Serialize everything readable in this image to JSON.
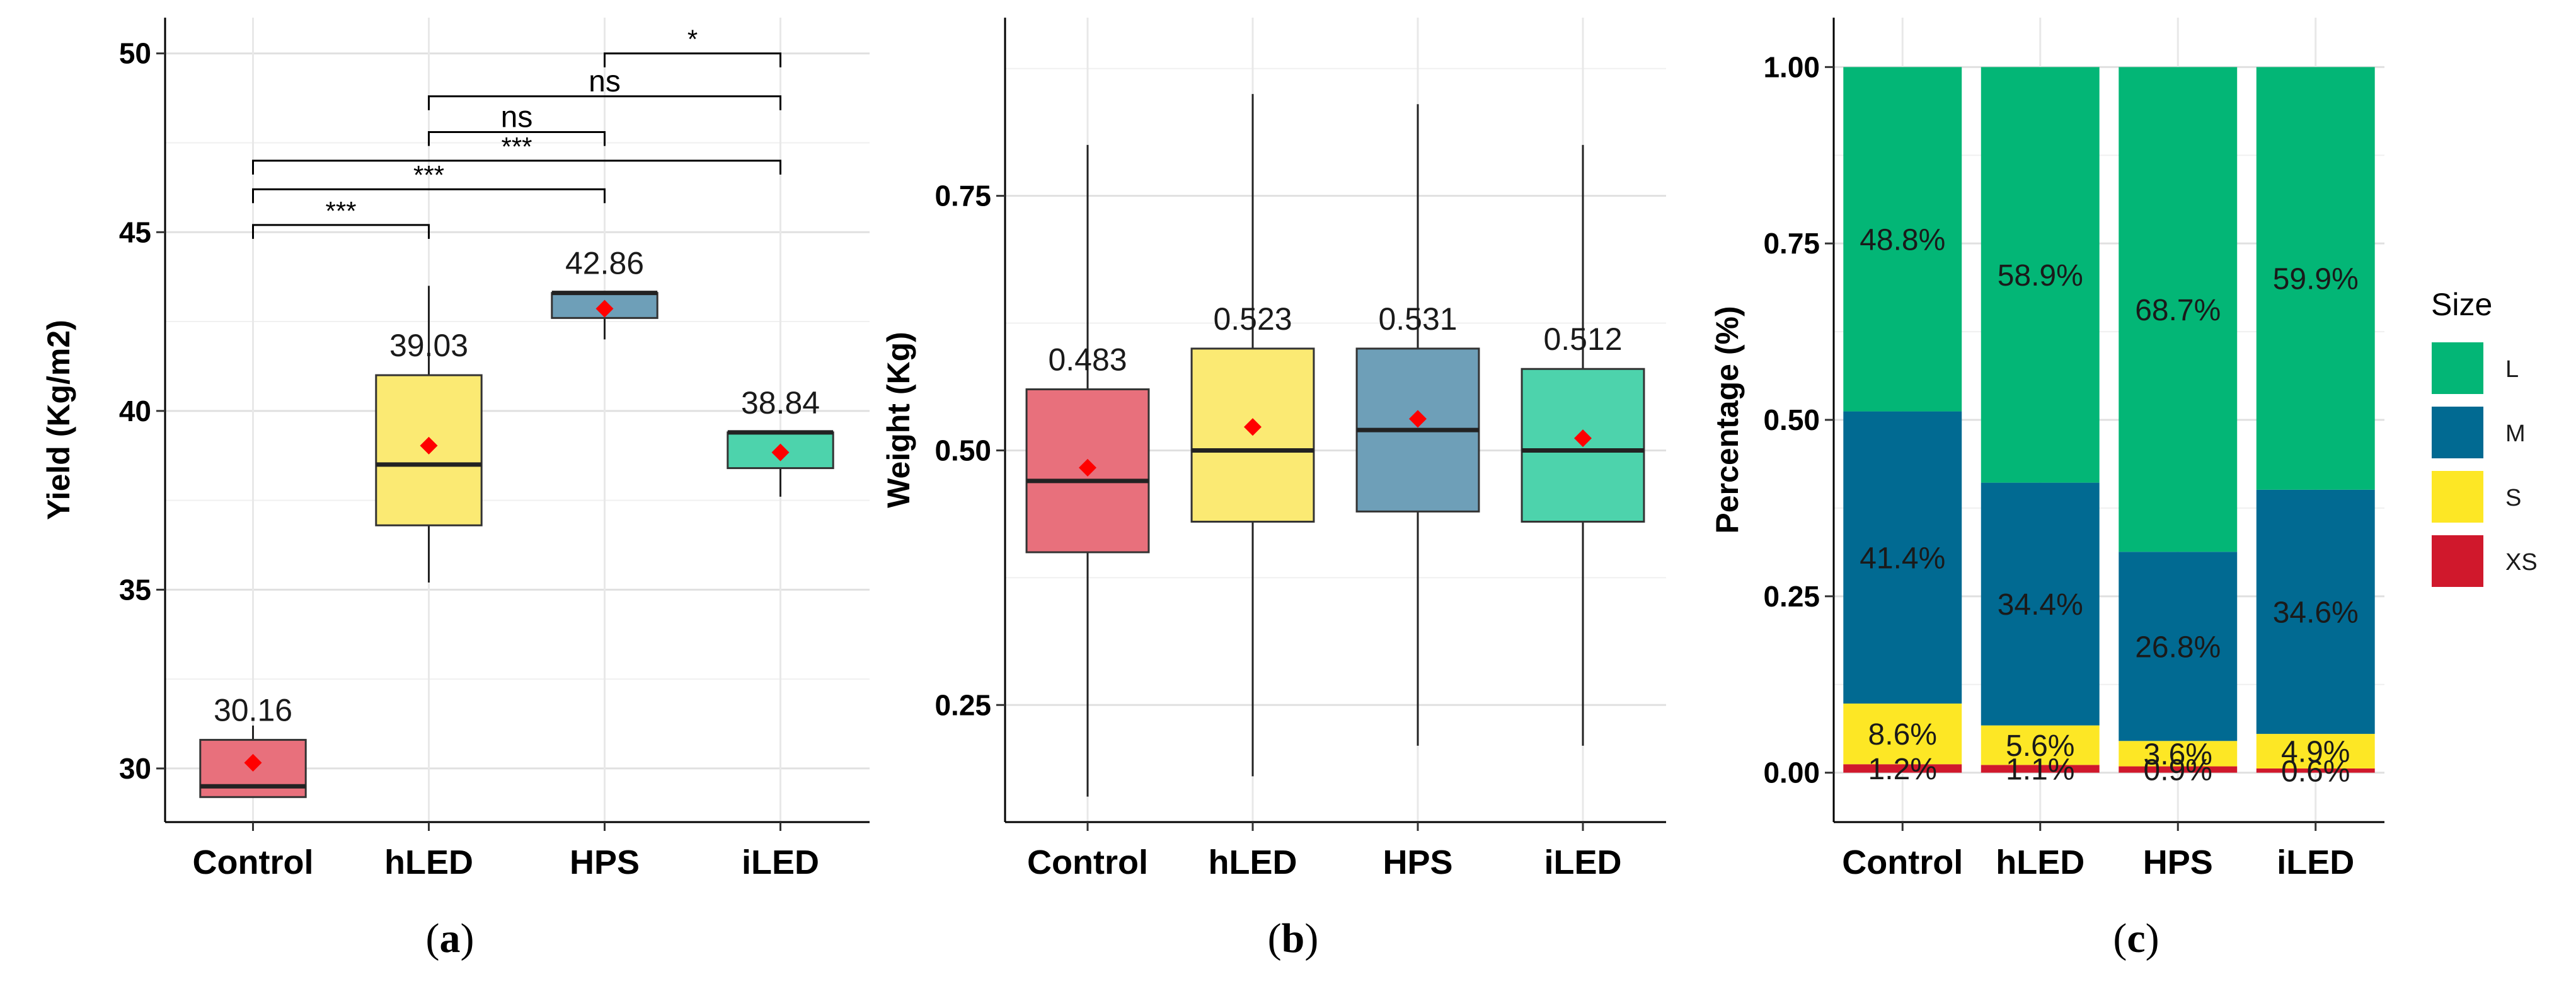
{
  "chart_data": [
    {
      "type": "box",
      "panel": "(a)",
      "panel_letter": "a",
      "ylabel": "Yield (Kg/m2)",
      "xlabel": "",
      "categories": [
        "Control",
        "hLED",
        "HPS",
        "iLED"
      ],
      "ylim": [
        28.5,
        51
      ],
      "yticks": [
        30,
        35,
        40,
        45,
        50
      ],
      "colors": [
        "#e8707c",
        "#fbea73",
        "#6e9fb8",
        "#4dd3ac"
      ],
      "boxes": [
        {
          "whisker_low": 29.2,
          "q1": 29.2,
          "median": 29.5,
          "q3": 30.8,
          "whisker_high": 31.2,
          "mean": 30.16,
          "mean_label": "30.16"
        },
        {
          "whisker_low": 35.2,
          "q1": 36.8,
          "median": 38.5,
          "q3": 41.0,
          "whisker_high": 43.5,
          "mean": 39.03,
          "mean_label": "39.03"
        },
        {
          "whisker_low": 42.0,
          "q1": 42.6,
          "median": 43.3,
          "q3": 43.3,
          "whisker_high": 43.3,
          "mean": 42.86,
          "mean_label": "42.86"
        },
        {
          "whisker_low": 37.6,
          "q1": 38.4,
          "median": 39.4,
          "q3": 39.4,
          "whisker_high": 39.4,
          "mean": 38.84,
          "mean_label": "38.84"
        }
      ],
      "significance": [
        {
          "from": "HPS",
          "to": "iLED",
          "label": "*",
          "y": 50.0
        },
        {
          "from": "hLED",
          "to": "iLED",
          "label": "ns",
          "y": 48.8
        },
        {
          "from": "hLED",
          "to": "HPS",
          "label": "ns",
          "y": 47.8
        },
        {
          "from": "Control",
          "to": "iLED",
          "label": "***",
          "y": 47.0
        },
        {
          "from": "Control",
          "to": "HPS",
          "label": "***",
          "y": 46.2
        },
        {
          "from": "Control",
          "to": "hLED",
          "label": "***",
          "y": 45.2
        }
      ]
    },
    {
      "type": "box",
      "panel": "(b)",
      "panel_letter": "b",
      "ylabel": "Weight (Kg)",
      "xlabel": "",
      "categories": [
        "Control",
        "hLED",
        "HPS",
        "iLED"
      ],
      "ylim": [
        0.135,
        0.925
      ],
      "yticks": [
        0.25,
        0.5,
        0.75
      ],
      "ytick_labels": [
        "0.25",
        "0.50",
        "0.75"
      ],
      "colors": [
        "#e8707c",
        "#fbea73",
        "#6e9fb8",
        "#4dd3ac"
      ],
      "boxes": [
        {
          "whisker_low": 0.16,
          "q1": 0.4,
          "median": 0.47,
          "q3": 0.56,
          "whisker_high": 0.8,
          "mean": 0.483,
          "mean_label": "0.483"
        },
        {
          "whisker_low": 0.18,
          "q1": 0.43,
          "median": 0.5,
          "q3": 0.6,
          "whisker_high": 0.85,
          "mean": 0.523,
          "mean_label": "0.523"
        },
        {
          "whisker_low": 0.21,
          "q1": 0.44,
          "median": 0.52,
          "q3": 0.6,
          "whisker_high": 0.84,
          "mean": 0.531,
          "mean_label": "0.531"
        },
        {
          "whisker_low": 0.21,
          "q1": 0.43,
          "median": 0.5,
          "q3": 0.58,
          "whisker_high": 0.8,
          "mean": 0.512,
          "mean_label": "0.512"
        }
      ]
    },
    {
      "type": "bar",
      "stacked": true,
      "panel": "(c)",
      "panel_letter": "c",
      "ylabel": "Percentage (%)",
      "xlabel": "",
      "categories": [
        "Control",
        "hLED",
        "HPS",
        "iLED"
      ],
      "ylim": [
        -0.07,
        1.07
      ],
      "yticks": [
        0,
        0.25,
        0.5,
        0.75,
        1.0
      ],
      "ytick_labels": [
        "0.00",
        "0.25",
        "0.50",
        "0.75",
        "1.00"
      ],
      "legend_title": "Size",
      "legend_position": "right",
      "series": [
        {
          "name": "XS",
          "color": "#d0182c",
          "values": [
            0.012,
            0.011,
            0.009,
            0.006
          ],
          "labels": [
            "1.2%",
            "1.1%",
            "0.9%",
            "0.6%"
          ]
        },
        {
          "name": "S",
          "color": "#fde725",
          "values": [
            0.086,
            0.056,
            0.036,
            0.049
          ],
          "labels": [
            "8.6%",
            "5.6%",
            "3.6%",
            "4.9%"
          ]
        },
        {
          "name": "M",
          "color": "#016a92",
          "values": [
            0.414,
            0.344,
            0.268,
            0.346
          ],
          "labels": [
            "41.4%",
            "34.4%",
            "26.8%",
            "34.6%"
          ]
        },
        {
          "name": "L",
          "color": "#03b676",
          "values": [
            0.488,
            0.589,
            0.687,
            0.599
          ],
          "labels": [
            "48.8%",
            "58.9%",
            "68.7%",
            "59.9%"
          ]
        }
      ],
      "legend_order": [
        "L",
        "M",
        "S",
        "XS"
      ]
    }
  ]
}
